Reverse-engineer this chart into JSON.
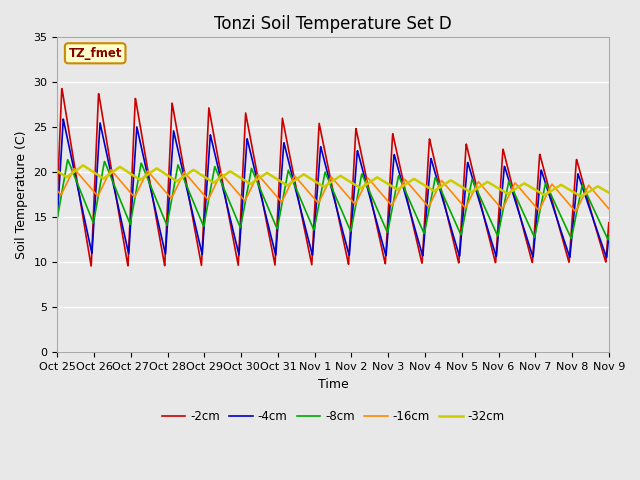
{
  "title": "Tonzi Soil Temperature Set D",
  "xlabel": "Time",
  "ylabel": "Soil Temperature (C)",
  "ylim": [
    0,
    35
  ],
  "yticks": [
    0,
    5,
    10,
    15,
    20,
    25,
    30,
    35
  ],
  "legend_label": "TZ_fmet",
  "series_labels": [
    "-2cm",
    "-4cm",
    "-8cm",
    "-16cm",
    "-32cm"
  ],
  "series_colors": [
    "#cc0000",
    "#0000cc",
    "#00aa00",
    "#ff8800",
    "#cccc00"
  ],
  "series_linewidths": [
    1.2,
    1.2,
    1.2,
    1.2,
    1.8
  ],
  "xtick_labels": [
    "Oct 25",
    "Oct 26",
    "Oct 27",
    "Oct 28",
    "Oct 29",
    "Oct 30",
    "Oct 31",
    "Nov 1",
    "Nov 2",
    "Nov 3",
    "Nov 4",
    "Nov 5",
    "Nov 6",
    "Nov 7",
    "Nov 8",
    "Nov 9"
  ],
  "background_color": "#e8e8e8",
  "plot_bg_color": "#e8e8e8",
  "title_fontsize": 12,
  "axis_label_fontsize": 9,
  "tick_fontsize": 8
}
